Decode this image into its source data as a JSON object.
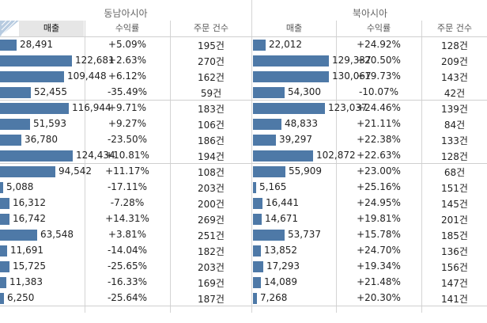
{
  "colors": {
    "bar": "#4e79a7",
    "sorted_header_bg": "#e6e6e6",
    "divider": "#d4d4d4"
  },
  "regions": [
    {
      "title": "동남아시아",
      "headers": [
        "매출",
        "수익률",
        "주문 건수"
      ]
    },
    {
      "title": "북아시아",
      "headers": [
        "매출",
        "수익률",
        "주문 건수"
      ]
    }
  ],
  "bar_scale_max": 135000,
  "rows": [
    {
      "a": {
        "sales": 28491,
        "sales_label": "28,491",
        "margin": "+5.09%",
        "orders": "195건"
      },
      "b": {
        "sales": 22012,
        "sales_label": "22,012",
        "margin": "+24.92%",
        "orders": "128건"
      }
    },
    {
      "a": {
        "sales": 122681,
        "sales_label": "122,681",
        "margin": "+2.63%",
        "orders": "270건"
      },
      "b": {
        "sales": 129337,
        "sales_label": "129,337",
        "margin": "+20.50%",
        "orders": "209건"
      }
    },
    {
      "a": {
        "sales": 109448,
        "sales_label": "109,448",
        "margin": "+6.12%",
        "orders": "162건"
      },
      "b": {
        "sales": 130067,
        "sales_label": "130,067",
        "margin": "+19.73%",
        "orders": "143건"
      }
    },
    {
      "a": {
        "sales": 52455,
        "sales_label": "52,455",
        "margin": "-35.49%",
        "orders": "59건"
      },
      "b": {
        "sales": 54300,
        "sales_label": "54,300",
        "margin": "-10.07%",
        "orders": "42건"
      }
    },
    {
      "a": {
        "sales": 116944,
        "sales_label": "116,944",
        "margin": "+9.71%",
        "orders": "183건"
      },
      "b": {
        "sales": 123037,
        "sales_label": "123,037",
        "margin": "+24.46%",
        "orders": "139건"
      }
    },
    {
      "a": {
        "sales": 51593,
        "sales_label": "51,593",
        "margin": "+9.27%",
        "orders": "106건"
      },
      "b": {
        "sales": 48833,
        "sales_label": "48,833",
        "margin": "+21.11%",
        "orders": "84건"
      }
    },
    {
      "a": {
        "sales": 36780,
        "sales_label": "36,780",
        "margin": "-23.50%",
        "orders": "186건"
      },
      "b": {
        "sales": 39297,
        "sales_label": "39,297",
        "margin": "+22.38%",
        "orders": "133건"
      }
    },
    {
      "a": {
        "sales": 124434,
        "sales_label": "124,434",
        "margin": "+10.81%",
        "orders": "194건"
      },
      "b": {
        "sales": 102872,
        "sales_label": "102,872",
        "margin": "+22.63%",
        "orders": "128건"
      }
    },
    {
      "a": {
        "sales": 94542,
        "sales_label": "94,542",
        "margin": "+11.17%",
        "orders": "108건"
      },
      "b": {
        "sales": 55909,
        "sales_label": "55,909",
        "margin": "+23.00%",
        "orders": "68건"
      }
    },
    {
      "a": {
        "sales": 5088,
        "sales_label": "5,088",
        "margin": "-17.11%",
        "orders": "203건"
      },
      "b": {
        "sales": 5165,
        "sales_label": "5,165",
        "margin": "+25.16%",
        "orders": "151건"
      }
    },
    {
      "a": {
        "sales": 16312,
        "sales_label": "16,312",
        "margin": "-7.28%",
        "orders": "200건"
      },
      "b": {
        "sales": 16441,
        "sales_label": "16,441",
        "margin": "+24.95%",
        "orders": "145건"
      }
    },
    {
      "a": {
        "sales": 16742,
        "sales_label": "16,742",
        "margin": "+14.31%",
        "orders": "269건"
      },
      "b": {
        "sales": 14671,
        "sales_label": "14,671",
        "margin": "+19.81%",
        "orders": "201건"
      }
    },
    {
      "a": {
        "sales": 63548,
        "sales_label": "63,548",
        "margin": "+3.81%",
        "orders": "251건"
      },
      "b": {
        "sales": 53737,
        "sales_label": "53,737",
        "margin": "+15.78%",
        "orders": "185건"
      }
    },
    {
      "a": {
        "sales": 11691,
        "sales_label": "11,691",
        "margin": "-14.04%",
        "orders": "182건"
      },
      "b": {
        "sales": 13852,
        "sales_label": "13,852",
        "margin": "+24.70%",
        "orders": "136건"
      }
    },
    {
      "a": {
        "sales": 15725,
        "sales_label": "15,725",
        "margin": "-25.65%",
        "orders": "203건"
      },
      "b": {
        "sales": 17293,
        "sales_label": "17,293",
        "margin": "+19.34%",
        "orders": "156건"
      }
    },
    {
      "a": {
        "sales": 11383,
        "sales_label": "11,383",
        "margin": "-16.33%",
        "orders": "169건"
      },
      "b": {
        "sales": 14089,
        "sales_label": "14,089",
        "margin": "+21.48%",
        "orders": "147건"
      }
    },
    {
      "a": {
        "sales": 6250,
        "sales_label": "6,250",
        "margin": "-25.64%",
        "orders": "187건"
      },
      "b": {
        "sales": 7268,
        "sales_label": "7,268",
        "margin": "+20.30%",
        "orders": "141건"
      }
    }
  ]
}
